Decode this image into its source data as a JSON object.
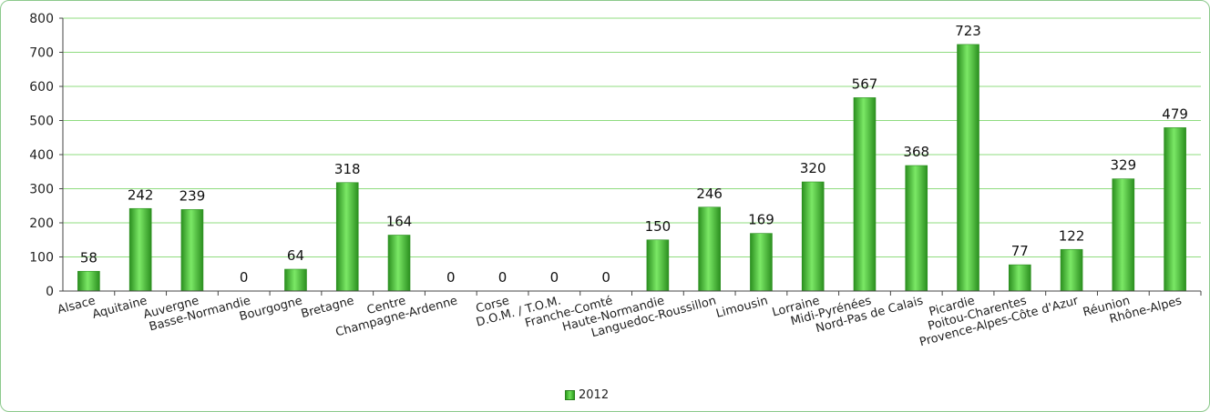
{
  "chart_data": {
    "type": "bar",
    "categories": [
      "Alsace",
      "Aquitaine",
      "Auvergne",
      "Basse-Normandie",
      "Bourgogne",
      "Bretagne",
      "Centre",
      "Champagne-Ardenne",
      "Corse",
      "D.O.M. / T.O.M.",
      "Franche-Comté",
      "Haute-Normandie",
      "Languedoc-Roussillon",
      "Limousin",
      "Lorraine",
      "Midi-Pyrénées",
      "Nord-Pas de Calais",
      "Picardie",
      "Poitou-Charentes",
      "Provence-Alpes-Côte d'Azur",
      "Réunion",
      "Rhône-Alpes"
    ],
    "series": [
      {
        "name": "2012",
        "values": [
          58,
          242,
          239,
          0,
          64,
          318,
          164,
          0,
          0,
          0,
          0,
          150,
          246,
          169,
          320,
          567,
          368,
          723,
          77,
          122,
          329,
          479
        ]
      }
    ],
    "ylim": [
      0,
      800
    ],
    "yticks": [
      0,
      100,
      200,
      300,
      400,
      500,
      600,
      700,
      800
    ],
    "grid": true,
    "legend_position": "bottom",
    "data_labels": true,
    "colors": {
      "bar": "#3fbf2f",
      "bar_light": "#7be866",
      "bar_dark": "#2b8f1f",
      "grid": "#8fdc7f",
      "axis": "#444444"
    }
  }
}
